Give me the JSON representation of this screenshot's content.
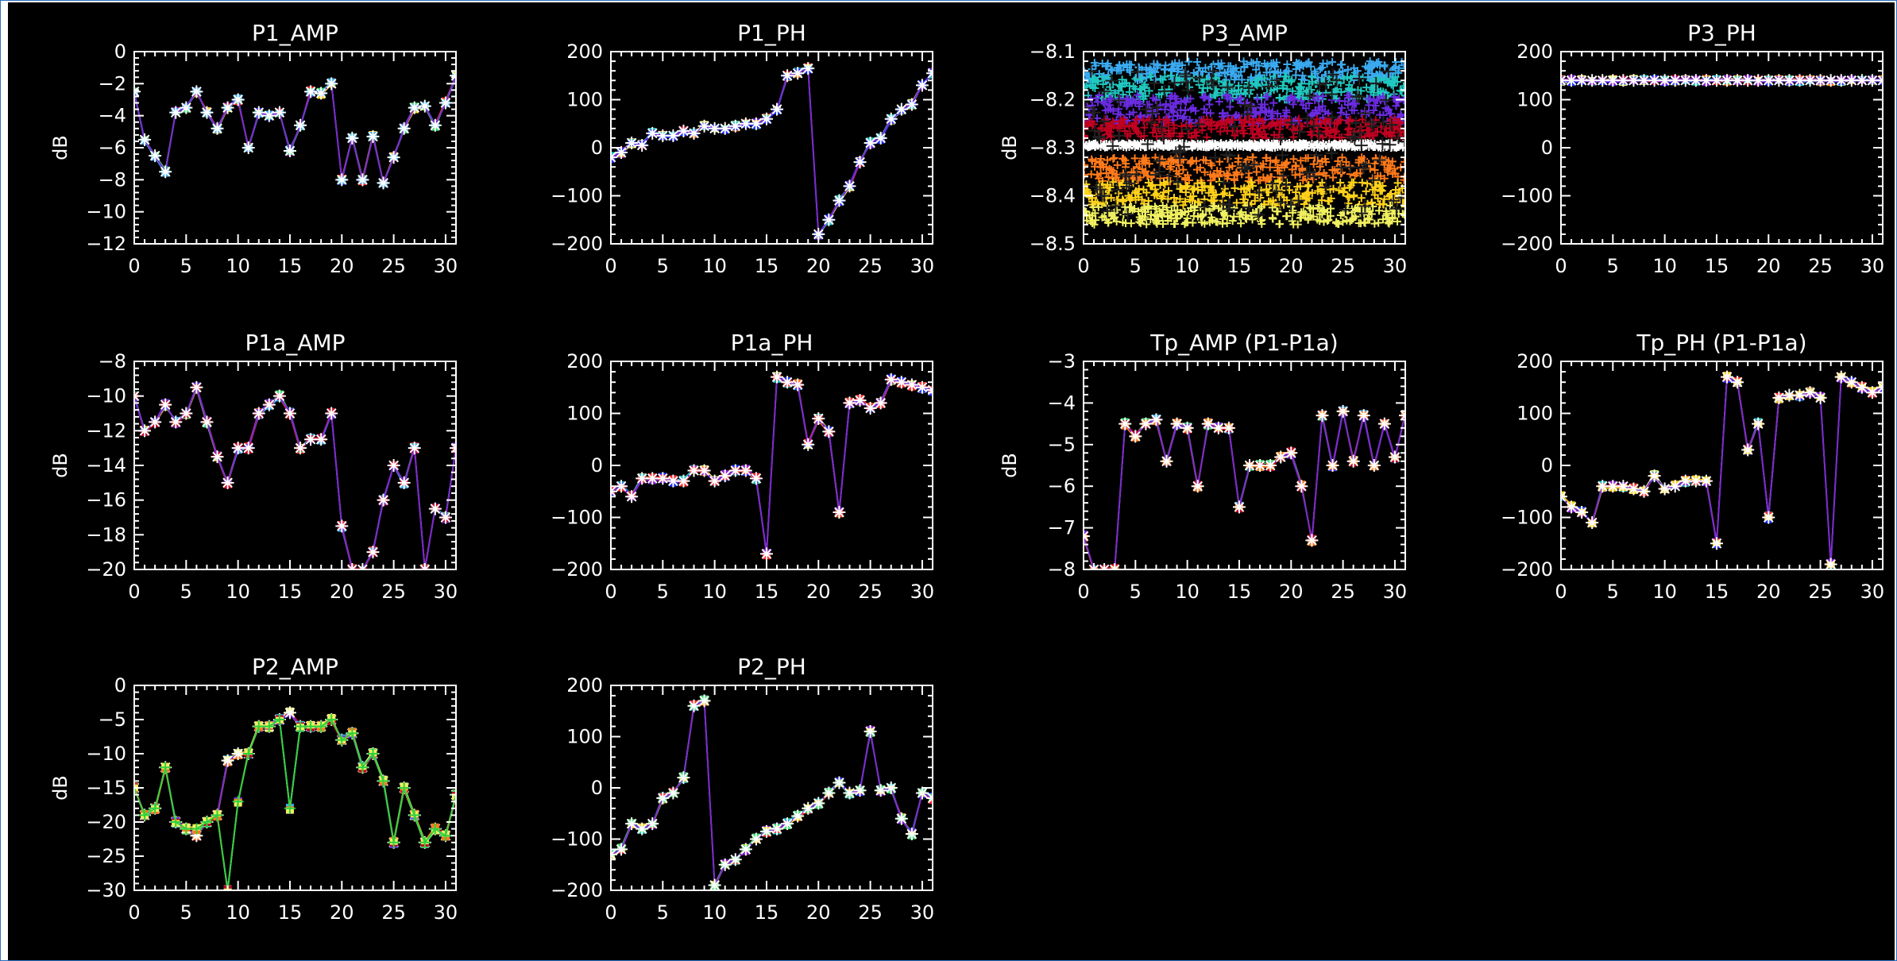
{
  "colors": {
    "background": "#000000",
    "axis": "#ffffff",
    "marker": "#ffffff",
    "palette": [
      "#2030ff",
      "#6a2be0",
      "#8a1ed0",
      "#c00020",
      "#ff2a2a",
      "#ff7a1a",
      "#ffd21a",
      "#f0f060",
      "#40e070",
      "#20c8c0",
      "#3aaaf0",
      "#ffffff"
    ]
  },
  "chart_data": [
    {
      "id": "p1-amp",
      "type": "line",
      "title": "P1_AMP",
      "ylabel": "dB",
      "xlim": [
        0,
        31
      ],
      "ylim": [
        -12,
        0
      ],
      "xticks": [
        0,
        5,
        10,
        15,
        20,
        25,
        30
      ],
      "yticks": [
        0,
        -2,
        -4,
        -6,
        -8,
        -10,
        -12
      ],
      "x": [
        0,
        1,
        2,
        3,
        4,
        5,
        6,
        7,
        8,
        9,
        10,
        11,
        12,
        13,
        14,
        15,
        16,
        17,
        18,
        19,
        20,
        21,
        22,
        23,
        24,
        25,
        26,
        27,
        28,
        29,
        30,
        31
      ],
      "series": [
        {
          "values": [
            -2.5,
            -5.5,
            -6.5,
            -7.5,
            -3.8,
            -3.5,
            -2.5,
            -3.8,
            -4.8,
            -3.5,
            -3.0,
            -6.0,
            -3.8,
            -4.0,
            -3.8,
            -6.2,
            -4.6,
            -2.5,
            -2.6,
            -2.0,
            -8.0,
            -5.4,
            -8.0,
            -5.3,
            -8.2,
            -6.6,
            -4.8,
            -3.5,
            -3.4,
            -4.6,
            -3.2,
            -1.5
          ]
        }
      ]
    },
    {
      "id": "p1-ph",
      "type": "line",
      "title": "P1_PH",
      "ylabel": "",
      "xlim": [
        0,
        31
      ],
      "ylim": [
        -200,
        200
      ],
      "xticks": [
        0,
        5,
        10,
        15,
        20,
        25,
        30
      ],
      "yticks": [
        200,
        100,
        0,
        -100,
        -200
      ],
      "x": [
        0,
        1,
        2,
        3,
        4,
        5,
        6,
        7,
        8,
        9,
        10,
        11,
        12,
        13,
        14,
        15,
        16,
        17,
        18,
        19,
        20,
        21,
        22,
        23,
        24,
        25,
        26,
        27,
        28,
        29,
        30,
        31
      ],
      "series": [
        {
          "values": [
            -20,
            -10,
            10,
            5,
            30,
            25,
            25,
            35,
            30,
            45,
            40,
            40,
            45,
            50,
            50,
            60,
            80,
            150,
            155,
            165,
            -180,
            -150,
            -110,
            -80,
            -30,
            10,
            20,
            60,
            80,
            90,
            130,
            155
          ]
        }
      ]
    },
    {
      "id": "p3-amp",
      "type": "scatter",
      "title": "P3_AMP",
      "ylabel": "dB",
      "xlim": [
        0,
        31
      ],
      "ylim": [
        -8.5,
        -8.1
      ],
      "xticks": [
        0,
        5,
        10,
        15,
        20,
        25,
        30
      ],
      "yticks": [
        -8.1,
        -8.2,
        -8.3,
        -8.4,
        -8.5
      ],
      "series": [
        {
          "band": [
            -8.16,
            -8.12
          ],
          "color": "#3aaaf0"
        },
        {
          "band": [
            -8.2,
            -8.15
          ],
          "color": "#20c8c0"
        },
        {
          "band": [
            -8.25,
            -8.19
          ],
          "color": "#6a2be0"
        },
        {
          "band": [
            -8.28,
            -8.24
          ],
          "color": "#c00020"
        },
        {
          "band": [
            -8.3,
            -8.29
          ],
          "color": "#ffffff"
        },
        {
          "band": [
            -8.37,
            -8.32
          ],
          "color": "#ff7a1a"
        },
        {
          "band": [
            -8.42,
            -8.37
          ],
          "color": "#ffd21a"
        },
        {
          "band": [
            -8.46,
            -8.42
          ],
          "color": "#f0f060"
        }
      ]
    },
    {
      "id": "p3-ph",
      "type": "line",
      "title": "P3_PH",
      "ylabel": "",
      "xlim": [
        0,
        31
      ],
      "ylim": [
        -200,
        200
      ],
      "xticks": [
        0,
        5,
        10,
        15,
        20,
        25,
        30
      ],
      "yticks": [
        200,
        100,
        0,
        -100,
        -200
      ],
      "x": [
        0,
        1,
        2,
        3,
        4,
        5,
        6,
        7,
        8,
        9,
        10,
        11,
        12,
        13,
        14,
        15,
        16,
        17,
        18,
        19,
        20,
        21,
        22,
        23,
        24,
        25,
        26,
        27,
        28,
        29,
        30,
        31
      ],
      "series": [
        {
          "values": [
            140,
            140,
            140,
            140,
            140,
            140,
            140,
            140,
            140,
            140,
            140,
            140,
            140,
            140,
            140,
            140,
            140,
            140,
            140,
            140,
            140,
            140,
            140,
            140,
            140,
            140,
            140,
            140,
            140,
            140,
            140,
            140
          ]
        }
      ]
    },
    {
      "id": "p1a-amp",
      "type": "line",
      "title": "P1a_AMP",
      "ylabel": "dB",
      "xlim": [
        0,
        31
      ],
      "ylim": [
        -20,
        -8
      ],
      "xticks": [
        0,
        5,
        10,
        15,
        20,
        25,
        30
      ],
      "yticks": [
        -8,
        -10,
        -12,
        -14,
        -16,
        -18,
        -20
      ],
      "x": [
        0,
        1,
        2,
        3,
        4,
        5,
        6,
        7,
        8,
        9,
        10,
        11,
        12,
        13,
        14,
        15,
        16,
        17,
        18,
        19,
        20,
        21,
        22,
        23,
        24,
        25,
        26,
        27,
        28,
        29,
        30,
        31
      ],
      "series": [
        {
          "values": [
            -10,
            -12,
            -11.5,
            -10.5,
            -11.5,
            -11,
            -9.5,
            -11.5,
            -13.5,
            -15,
            -13,
            -13,
            -11,
            -10.5,
            -10,
            -11,
            -13,
            -12.5,
            -12.5,
            -11,
            -17.5,
            -20,
            -20,
            -19,
            -16,
            -14,
            -15,
            -13,
            -20,
            -16.5,
            -17,
            -13
          ]
        }
      ]
    },
    {
      "id": "p1a-ph",
      "type": "line",
      "title": "P1a_PH",
      "ylabel": "",
      "xlim": [
        0,
        31
      ],
      "ylim": [
        -200,
        200
      ],
      "xticks": [
        0,
        5,
        10,
        15,
        20,
        25,
        30
      ],
      "yticks": [
        200,
        100,
        0,
        -100,
        -200
      ],
      "x": [
        0,
        1,
        2,
        3,
        4,
        5,
        6,
        7,
        8,
        9,
        10,
        11,
        12,
        13,
        14,
        15,
        16,
        17,
        18,
        19,
        20,
        21,
        22,
        23,
        24,
        25,
        26,
        27,
        28,
        29,
        30,
        31
      ],
      "series": [
        {
          "values": [
            -50,
            -40,
            -60,
            -25,
            -25,
            -25,
            -30,
            -30,
            -10,
            -10,
            -30,
            -20,
            -10,
            -10,
            -25,
            -170,
            170,
            160,
            155,
            40,
            90,
            65,
            -90,
            120,
            125,
            110,
            120,
            165,
            160,
            155,
            150,
            145
          ]
        }
      ]
    },
    {
      "id": "tp-amp",
      "type": "line",
      "title": "Tp_AMP (P1-P1a)",
      "ylabel": "dB",
      "xlim": [
        0,
        31
      ],
      "ylim": [
        -8,
        -3
      ],
      "xticks": [
        0,
        5,
        10,
        15,
        20,
        25,
        30
      ],
      "yticks": [
        -3,
        -4,
        -5,
        -6,
        -7,
        -8
      ],
      "x": [
        0,
        1,
        2,
        3,
        4,
        5,
        6,
        7,
        8,
        9,
        10,
        11,
        12,
        13,
        14,
        15,
        16,
        17,
        18,
        19,
        20,
        21,
        22,
        23,
        24,
        25,
        26,
        27,
        28,
        29,
        30,
        31
      ],
      "series": [
        {
          "values": [
            -7.2,
            -8,
            -8,
            -8,
            -4.5,
            -4.8,
            -4.5,
            -4.4,
            -5.4,
            -4.5,
            -4.6,
            -6,
            -4.5,
            -4.6,
            -4.6,
            -6.5,
            -5.5,
            -5.5,
            -5.5,
            -5.3,
            -5.2,
            -6,
            -7.3,
            -4.3,
            -5.5,
            -4.2,
            -5.4,
            -4.3,
            -5.5,
            -4.5,
            -5.3,
            -4.3
          ]
        }
      ]
    },
    {
      "id": "tp-ph",
      "type": "line",
      "title": "Tp_PH (P1-P1a)",
      "ylabel": "",
      "xlim": [
        0,
        31
      ],
      "ylim": [
        -200,
        200
      ],
      "xticks": [
        0,
        5,
        10,
        15,
        20,
        25,
        30
      ],
      "yticks": [
        200,
        100,
        0,
        -100,
        -200
      ],
      "x": [
        0,
        1,
        2,
        3,
        4,
        5,
        6,
        7,
        8,
        9,
        10,
        11,
        12,
        13,
        14,
        15,
        16,
        17,
        18,
        19,
        20,
        21,
        22,
        23,
        24,
        25,
        26,
        27,
        28,
        29,
        30,
        31
      ],
      "series": [
        {
          "values": [
            -60,
            -80,
            -90,
            -110,
            -40,
            -40,
            -40,
            -45,
            -50,
            -20,
            -45,
            -40,
            -30,
            -30,
            -30,
            -150,
            170,
            160,
            30,
            80,
            -100,
            130,
            135,
            135,
            140,
            130,
            -190,
            170,
            160,
            150,
            140,
            150
          ]
        }
      ]
    },
    {
      "id": "p2-amp",
      "type": "line",
      "title": "P2_AMP",
      "ylabel": "dB",
      "xlim": [
        0,
        31
      ],
      "ylim": [
        -30,
        0
      ],
      "xticks": [
        0,
        5,
        10,
        15,
        20,
        25,
        30
      ],
      "yticks": [
        0,
        -5,
        -10,
        -15,
        -20,
        -25,
        -30
      ],
      "x": [
        0,
        1,
        2,
        3,
        4,
        5,
        6,
        7,
        8,
        9,
        10,
        11,
        12,
        13,
        14,
        15,
        16,
        17,
        18,
        19,
        20,
        21,
        22,
        23,
        24,
        25,
        26,
        27,
        28,
        29,
        30,
        31
      ],
      "series": [
        {
          "values": [
            -15,
            -19,
            -18,
            -12,
            -20,
            -21,
            -22,
            -20,
            -19,
            -11,
            -10,
            -10,
            -6,
            -6,
            -5,
            -4,
            -6,
            -6,
            -6,
            -5,
            -8,
            -7,
            -12,
            -10,
            -14,
            -23,
            -15,
            -19,
            -23,
            -21,
            -22,
            -16
          ]
        },
        {
          "values": [
            -15,
            -19,
            -18,
            -12,
            -20,
            -21,
            -21,
            -20,
            -19,
            -30,
            -17,
            -10,
            -6,
            -6,
            -5,
            -18,
            -6,
            -6,
            -6,
            -5,
            -8,
            -7,
            -12,
            -10,
            -14,
            -23,
            -15,
            -19,
            -23,
            -21,
            -22,
            -16
          ]
        }
      ]
    },
    {
      "id": "p2-ph",
      "type": "line",
      "title": "P2_PH",
      "ylabel": "",
      "xlim": [
        0,
        31
      ],
      "ylim": [
        -200,
        200
      ],
      "xticks": [
        0,
        5,
        10,
        15,
        20,
        25,
        30
      ],
      "yticks": [
        200,
        100,
        0,
        -100,
        -200
      ],
      "x": [
        0,
        1,
        2,
        3,
        4,
        5,
        6,
        7,
        8,
        9,
        10,
        11,
        12,
        13,
        14,
        15,
        16,
        17,
        18,
        19,
        20,
        21,
        22,
        23,
        24,
        25,
        26,
        27,
        28,
        29,
        30,
        31
      ],
      "series": [
        {
          "values": [
            -130,
            -120,
            -70,
            -80,
            -70,
            -20,
            -10,
            20,
            160,
            170,
            -190,
            -150,
            -140,
            -120,
            -100,
            -85,
            -80,
            -70,
            -55,
            -40,
            -30,
            -10,
            10,
            -10,
            -5,
            110,
            -5,
            0,
            -60,
            -90,
            -10,
            -20
          ]
        }
      ]
    }
  ]
}
